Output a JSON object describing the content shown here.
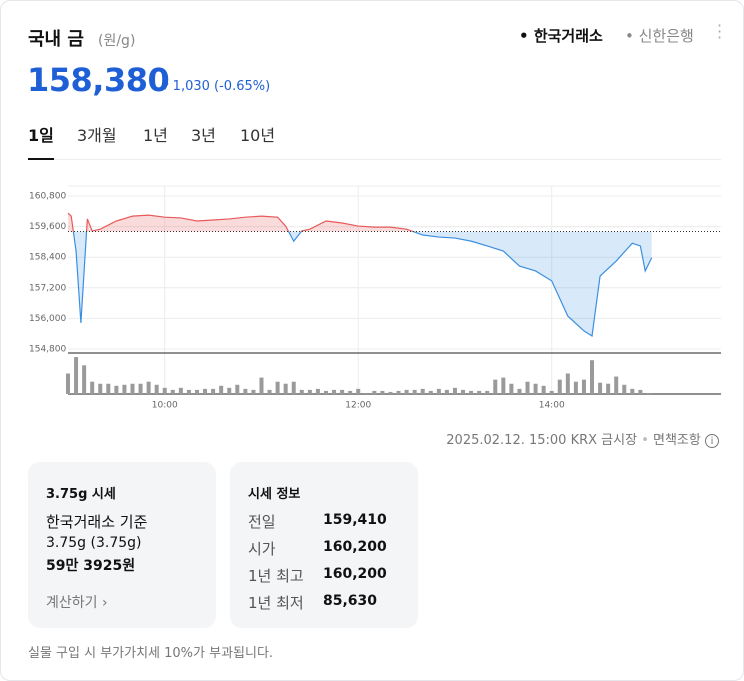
{
  "header": {
    "title": "국내 금",
    "unit": "(원/g)",
    "exchanges": [
      "한국거래소",
      "신한은행"
    ]
  },
  "price": {
    "value": "158,380",
    "change": "1,030",
    "change_pct": "(-0.65%)"
  },
  "tabs": [
    "1일",
    "3개월",
    "1년",
    "3년",
    "10년"
  ],
  "chart_data": {
    "type": "line",
    "x": [
      "09:00",
      "09:02",
      "09:05",
      "09:08",
      "09:12",
      "09:15",
      "09:20",
      "09:30",
      "09:40",
      "09:50",
      "10:00",
      "10:10",
      "10:20",
      "10:30",
      "10:40",
      "10:50",
      "11:00",
      "11:10",
      "11:15",
      "11:20",
      "11:25",
      "11:30",
      "11:40",
      "11:50",
      "12:00",
      "12:10",
      "12:20",
      "12:30",
      "12:40",
      "12:50",
      "13:00",
      "13:10",
      "13:20",
      "13:30",
      "13:40",
      "13:50",
      "14:00",
      "14:10",
      "14:20",
      "14:25",
      "14:30",
      "14:40",
      "14:50",
      "14:55",
      "14:58",
      "15:02"
    ],
    "values": [
      160130,
      160010,
      158640,
      155820,
      159900,
      159430,
      159500,
      159820,
      160010,
      160050,
      159970,
      159940,
      159820,
      159860,
      159900,
      159970,
      160010,
      159970,
      159620,
      159030,
      159430,
      159500,
      159820,
      159740,
      159620,
      159580,
      159580,
      159500,
      159270,
      159190,
      159150,
      159030,
      158840,
      158640,
      158050,
      157860,
      157470,
      156090,
      155510,
      155310,
      157660,
      158250,
      158950,
      158840,
      157860,
      158380
    ],
    "baseline": 159410,
    "up_color": "#e85a5a",
    "down_color": "#3c8fe0",
    "xlim": [
      "09:00",
      "15:45"
    ],
    "xticks": [
      "10:00",
      "12:00",
      "14:00"
    ],
    "ylim": [
      154800,
      160800
    ],
    "yticks": [
      {
        "value": 160800,
        "label": "160,800"
      },
      {
        "value": 159600,
        "label": "159,600"
      },
      {
        "value": 158400,
        "label": "158,400"
      },
      {
        "value": 157200,
        "label": "157,200"
      },
      {
        "value": 156000,
        "label": "156,000"
      },
      {
        "value": 154800,
        "label": "154,800"
      }
    ],
    "grid": true,
    "volume": {
      "color": "#9a9a9a",
      "vlim": [
        0,
        40
      ],
      "x": [
        "09:00",
        "09:05",
        "09:10",
        "09:15",
        "09:20",
        "09:25",
        "09:30",
        "09:35",
        "09:40",
        "09:45",
        "09:50",
        "09:55",
        "10:00",
        "10:05",
        "10:10",
        "10:15",
        "10:20",
        "10:25",
        "10:30",
        "10:35",
        "10:40",
        "10:45",
        "10:50",
        "10:55",
        "11:00",
        "11:05",
        "11:10",
        "11:15",
        "11:20",
        "11:25",
        "11:30",
        "11:35",
        "11:40",
        "11:45",
        "11:50",
        "11:55",
        "12:00",
        "12:05",
        "12:10",
        "12:15",
        "12:20",
        "12:25",
        "12:30",
        "12:35",
        "12:40",
        "12:45",
        "12:50",
        "12:55",
        "13:00",
        "13:05",
        "13:10",
        "13:15",
        "13:20",
        "13:25",
        "13:30",
        "13:35",
        "13:40",
        "13:45",
        "13:50",
        "13:55",
        "14:00",
        "14:05",
        "14:10",
        "14:15",
        "14:20",
        "14:25",
        "14:30",
        "14:35",
        "14:40",
        "14:45",
        "14:50",
        "14:55",
        "15:00"
      ],
      "values": [
        20,
        36,
        28,
        12,
        10,
        10,
        8,
        9,
        10,
        10,
        12,
        9,
        6,
        4,
        6,
        4,
        4,
        5,
        5,
        8,
        6,
        9,
        5,
        4,
        16,
        4,
        12,
        10,
        12,
        4,
        4,
        5,
        3,
        4,
        4,
        3,
        5,
        1,
        3,
        3,
        2,
        3,
        4,
        4,
        5,
        3,
        5,
        4,
        6,
        4,
        3,
        3,
        3,
        14,
        16,
        10,
        5,
        12,
        10,
        8,
        3,
        14,
        20,
        12,
        14,
        33,
        11,
        10,
        17,
        9,
        5,
        4,
        1
      ]
    }
  },
  "source": {
    "text": "2025.02.12. 15:00 KRX 금시장",
    "disclaimer": "면책조항"
  },
  "card_gram": {
    "title": "3.75g 시세",
    "basis": "한국거래소 기준",
    "weight": "3.75g (3.75g)",
    "price": "59만 3925원",
    "link": "계산하기"
  },
  "card_info": {
    "title": "시세 정보",
    "rows": [
      [
        "전일",
        "159,410"
      ],
      [
        "시가",
        "160,200"
      ],
      [
        "1년 최고",
        "160,200"
      ],
      [
        "1년 최저",
        "85,630"
      ]
    ]
  },
  "notice": "실물 구입 시 부가가치세 10%가 부과됩니다."
}
